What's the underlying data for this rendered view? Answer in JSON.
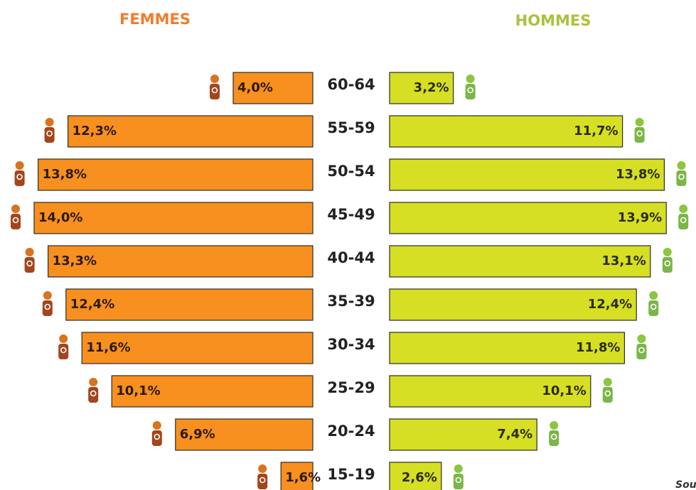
{
  "chart_data": {
    "type": "pyramid",
    "categories": [
      "60-64",
      "55-59",
      "50-54",
      "45-49",
      "40-44",
      "35-39",
      "30-34",
      "25-29",
      "20-24",
      "15-19"
    ],
    "series": [
      {
        "name": "FEMMES",
        "color": "#f7901e",
        "title_color": "#f07d2a",
        "values": [
          4.0,
          12.3,
          13.8,
          14.0,
          13.3,
          12.4,
          11.6,
          10.1,
          6.9,
          1.6
        ],
        "value_labels": [
          "4,0%",
          "12,3%",
          "13,8%",
          "14,0%",
          "13,3%",
          "12,4%",
          "11,6%",
          "10,1%",
          "6,9%",
          "1,6%"
        ]
      },
      {
        "name": "HOMMES",
        "color": "#d6df23",
        "title_color": "#a9c23f",
        "values": [
          3.2,
          11.7,
          13.8,
          13.9,
          13.1,
          12.4,
          11.8,
          10.1,
          7.4,
          2.6
        ],
        "value_labels": [
          "3,2%",
          "11,7%",
          "13,8%",
          "13,9%",
          "13,1%",
          "12,4%",
          "11,8%",
          "10,1%",
          "7,4%",
          "2,6%"
        ]
      }
    ],
    "source": "Sou"
  }
}
